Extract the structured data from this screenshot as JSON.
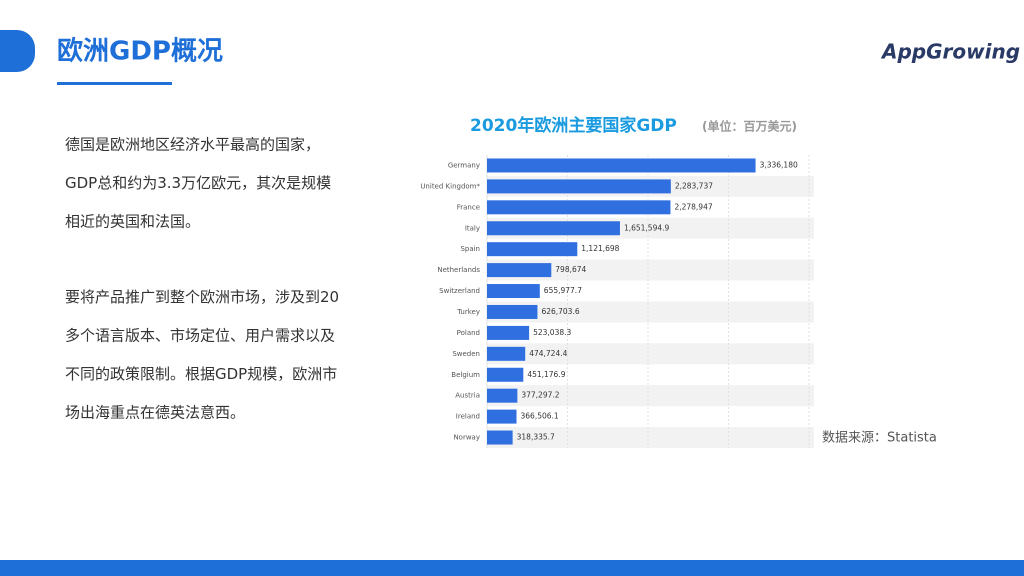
{
  "header": {
    "title": "欧洲GDP概况",
    "logo": "AppGrowing"
  },
  "body": {
    "paragraphs": [
      [
        "德国是欧洲地区经济水平最高的国家，",
        "GDP总和约为3.3万亿欧元，其次是规模",
        "相近的英国和法国。"
      ],
      [
        "要将产品推广到整个欧洲市场，涉及到20",
        "多个语言版本、市场定位、用户需求以及",
        "不同的政策限制。根据GDP规模，欧洲市",
        "场出海重点在德英法意西。"
      ]
    ]
  },
  "chart_data": {
    "type": "hbar",
    "title": "2020年欧洲主要国家GDP",
    "subtitle": "(单位：百万美元)",
    "categories": [
      "Germany",
      "United Kingdom*",
      "France",
      "Italy",
      "Spain",
      "Netherlands",
      "Switzerland",
      "Turkey",
      "Poland",
      "Sweden",
      "Belgium",
      "Austria",
      "Ireland",
      "Norway"
    ],
    "values": [
      3336180,
      2283737,
      2278947,
      1651594.9,
      1121698,
      798674,
      655977.7,
      626703.6,
      523038.3,
      474724.4,
      451176.9,
      377297.2,
      366506.1,
      318335.7
    ],
    "value_labels": [
      "3,336,180",
      "2,283,737",
      "2,278,947",
      "1,651,594.9",
      "1,121,698",
      "798,674",
      "655,977.7",
      "626,703.6",
      "523,038.3",
      "474,724.4",
      "451,176.9",
      "377,297.2",
      "366,506.1",
      "318,335.7"
    ],
    "color": "#2f6fe0",
    "xlim": [
      0,
      4000000
    ],
    "xticks": [
      0,
      1000000,
      2000000,
      3000000,
      4000000
    ],
    "grid": true
  },
  "source": "数据来源：Statista"
}
